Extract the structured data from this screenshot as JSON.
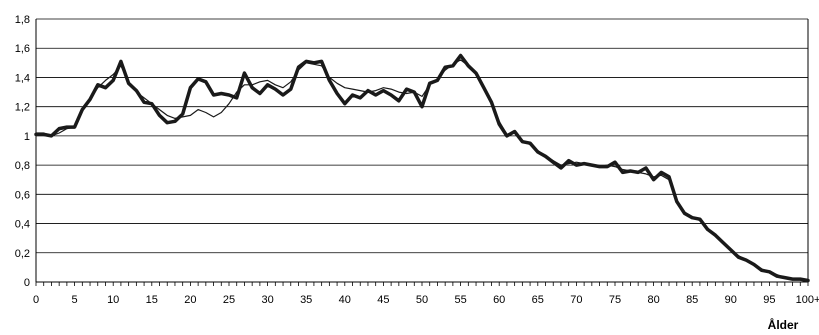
{
  "chart_data": {
    "type": "line",
    "title": "",
    "xlabel": "Ålder",
    "ylabel": "",
    "xlim": [
      0,
      100
    ],
    "ylim": [
      0,
      1.8
    ],
    "grid": true,
    "legend": "none",
    "x_tick_values": [
      0,
      5,
      10,
      15,
      20,
      25,
      30,
      35,
      40,
      45,
      50,
      55,
      60,
      65,
      70,
      75,
      80,
      85,
      90,
      95,
      100
    ],
    "x_tick_labels": [
      "0",
      "5",
      "10",
      "15",
      "20",
      "25",
      "30",
      "35",
      "40",
      "45",
      "50",
      "55",
      "60",
      "65",
      "70",
      "75",
      "80",
      "85",
      "90",
      "95",
      "100+"
    ],
    "y_tick_values": [
      0,
      0.2,
      0.4,
      0.6,
      0.8,
      1.0,
      1.2,
      1.4,
      1.6,
      1.8
    ],
    "y_tick_labels": [
      "0",
      "0,2",
      "0,4",
      "0,6",
      "0,8",
      "1",
      "1,2",
      "1,4",
      "1,6",
      "1,8"
    ],
    "x": [
      0,
      1,
      2,
      3,
      4,
      5,
      6,
      7,
      8,
      9,
      10,
      11,
      12,
      13,
      14,
      15,
      16,
      17,
      18,
      19,
      20,
      21,
      22,
      23,
      24,
      25,
      26,
      27,
      28,
      29,
      30,
      31,
      32,
      33,
      34,
      35,
      36,
      37,
      38,
      39,
      40,
      41,
      42,
      43,
      44,
      45,
      46,
      47,
      48,
      49,
      50,
      51,
      52,
      53,
      54,
      55,
      56,
      57,
      58,
      59,
      60,
      61,
      62,
      63,
      64,
      65,
      66,
      67,
      68,
      69,
      70,
      71,
      72,
      73,
      74,
      75,
      76,
      77,
      78,
      79,
      80,
      81,
      82,
      83,
      84,
      85,
      86,
      87,
      88,
      89,
      90,
      91,
      92,
      93,
      94,
      95,
      96,
      97,
      98,
      99,
      100
    ],
    "series": [
      {
        "color": "#1a1a1a",
        "width": 3.5,
        "values": [
          1.01,
          1.01,
          1.0,
          1.05,
          1.06,
          1.06,
          1.18,
          1.25,
          1.35,
          1.33,
          1.38,
          1.51,
          1.36,
          1.31,
          1.23,
          1.22,
          1.14,
          1.09,
          1.1,
          1.15,
          1.33,
          1.39,
          1.37,
          1.28,
          1.29,
          1.28,
          1.26,
          1.43,
          1.33,
          1.29,
          1.35,
          1.32,
          1.28,
          1.32,
          1.47,
          1.51,
          1.5,
          1.51,
          1.38,
          1.29,
          1.22,
          1.28,
          1.26,
          1.31,
          1.28,
          1.31,
          1.28,
          1.24,
          1.32,
          1.3,
          1.2,
          1.36,
          1.38,
          1.47,
          1.48,
          1.55,
          1.48,
          1.43,
          1.33,
          1.23,
          1.08,
          1.0,
          1.03,
          0.96,
          0.95,
          0.89,
          0.86,
          0.82,
          0.78,
          0.83,
          0.8,
          0.81,
          0.8,
          0.79,
          0.79,
          0.82,
          0.75,
          0.76,
          0.75,
          0.78,
          0.7,
          0.75,
          0.72,
          0.55,
          0.47,
          0.44,
          0.43,
          0.36,
          0.32,
          0.27,
          0.22,
          0.17,
          0.15,
          0.12,
          0.08,
          0.07,
          0.04,
          0.03,
          0.02,
          0.02,
          0.01
        ]
      },
      {
        "color": "#1a1a1a",
        "width": 1.2,
        "values": [
          1.02,
          1.02,
          1.0,
          1.02,
          1.05,
          1.06,
          1.17,
          1.25,
          1.33,
          1.38,
          1.42,
          1.48,
          1.37,
          1.3,
          1.26,
          1.22,
          1.18,
          1.14,
          1.12,
          1.13,
          1.14,
          1.18,
          1.16,
          1.13,
          1.16,
          1.22,
          1.3,
          1.35,
          1.35,
          1.37,
          1.38,
          1.35,
          1.33,
          1.37,
          1.45,
          1.5,
          1.49,
          1.48,
          1.4,
          1.36,
          1.33,
          1.32,
          1.31,
          1.3,
          1.31,
          1.33,
          1.32,
          1.3,
          1.29,
          1.3,
          1.27,
          1.35,
          1.39,
          1.45,
          1.49,
          1.52,
          1.48,
          1.42,
          1.33,
          1.23,
          1.1,
          1.01,
          1.02,
          0.97,
          0.94,
          0.9,
          0.86,
          0.83,
          0.8,
          0.81,
          0.82,
          0.81,
          0.8,
          0.79,
          0.8,
          0.79,
          0.77,
          0.76,
          0.75,
          0.74,
          0.72,
          0.73,
          0.7,
          0.56,
          0.48,
          0.44,
          0.42,
          0.37,
          0.32,
          0.27,
          0.22,
          0.18,
          0.15,
          0.12,
          0.09,
          0.07,
          0.05,
          0.03,
          0.02,
          0.02,
          0.01
        ]
      }
    ]
  }
}
